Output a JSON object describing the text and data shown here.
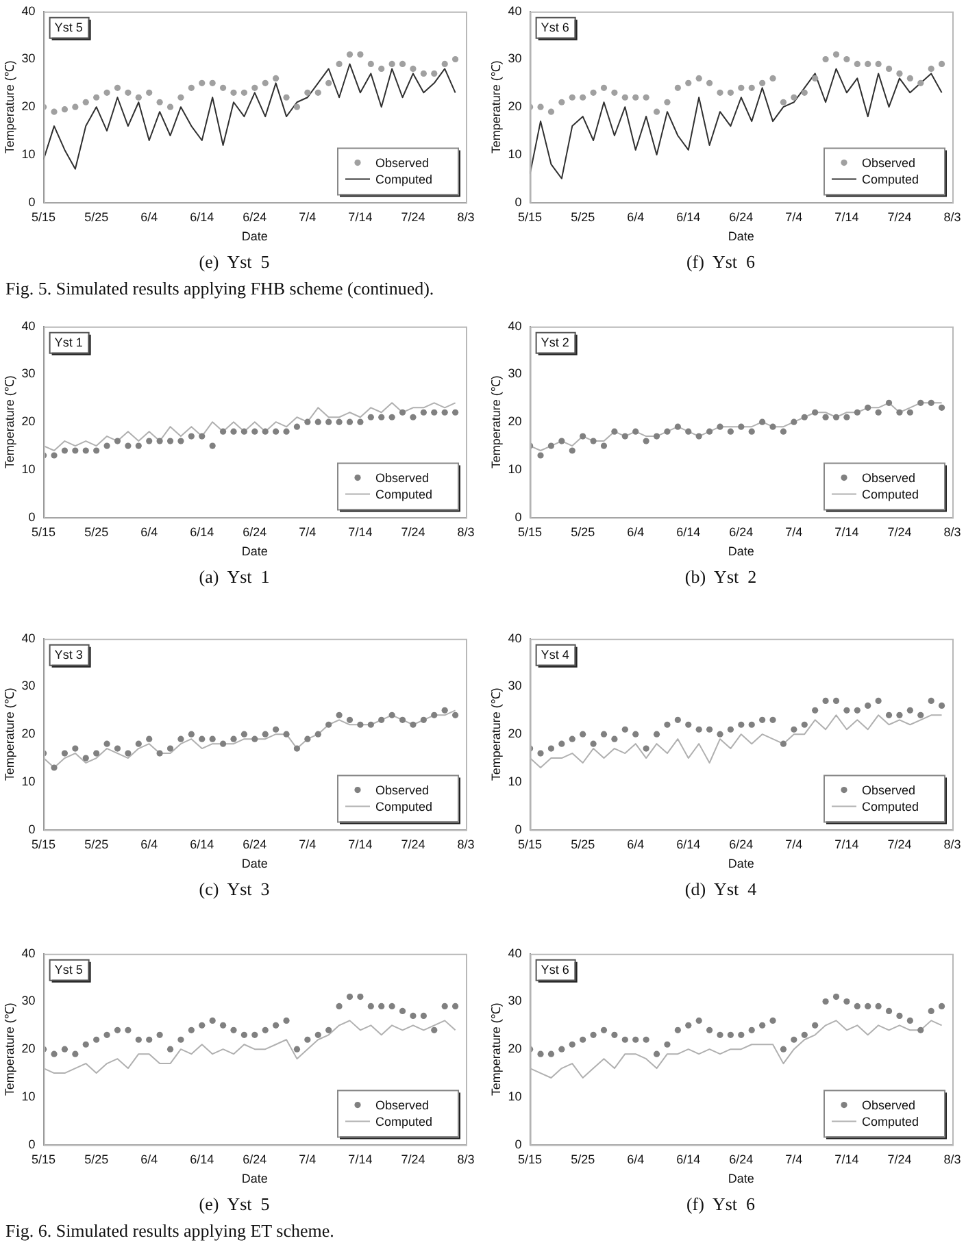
{
  "chart_data": [
    {
      "type": "line",
      "title": "(e)  Yst  5",
      "xlabel": "Date",
      "ylabel": "Temperature (℃)",
      "annotations": [
        "Yst 5",
        "Fig. 5. Simulated results applying FHB scheme (continued)."
      ],
      "legend": "bottom right",
      "ylim": [
        0,
        40
      ],
      "yticks": [
        0,
        10,
        20,
        30,
        40
      ],
      "xlim": [
        "--05-15",
        "--08-03"
      ],
      "xticks": [
        {
          "value": "--05-15",
          "label": "5/15"
        },
        {
          "value": "--05-25",
          "label": "5/25"
        },
        {
          "value": "--06-04",
          "label": "6/4"
        },
        {
          "value": "--06-14",
          "label": "6/14"
        },
        {
          "value": "--06-24",
          "label": "6/24"
        },
        {
          "value": "--07-04",
          "label": "7/4"
        },
        {
          "value": "--07-14",
          "label": "7/14"
        },
        {
          "value": "--07-24",
          "label": "7/24"
        },
        {
          "value": "--08-03",
          "label": "8/3"
        }
      ],
      "x": [
        "--05-15",
        "--05-17",
        "--05-19",
        "--05-21",
        "--05-23",
        "--05-25",
        "--05-27",
        "--05-29",
        "--05-31",
        "--06-02",
        "--06-04",
        "--06-06",
        "--06-08",
        "--06-10",
        "--06-12",
        "--06-14",
        "--06-16",
        "--06-18",
        "--06-20",
        "--06-22",
        "--06-24",
        "--06-26",
        "--06-28",
        "--06-30",
        "--07-02",
        "--07-04",
        "--07-06",
        "--07-08",
        "--07-10",
        "--07-12",
        "--07-14",
        "--07-16",
        "--07-18",
        "--07-20",
        "--07-22",
        "--07-24",
        "--07-26",
        "--07-28",
        "--07-30",
        "--08-01"
      ],
      "series": [
        {
          "name": "Observed",
          "type": "scatter",
          "marker": "circle",
          "color": "#a0a0a0",
          "values": [
            20,
            19,
            19.5,
            20,
            21,
            22,
            23,
            24,
            23,
            22,
            23,
            21,
            20,
            22,
            24,
            25,
            25,
            24,
            23,
            23,
            24,
            25,
            26,
            22,
            20,
            23,
            23,
            25,
            29,
            31,
            31,
            29,
            28,
            29,
            29,
            28,
            27,
            27,
            29,
            30
          ]
        },
        {
          "name": "Computed",
          "type": "line",
          "marker": "none",
          "color": "#303030",
          "values": [
            9,
            16,
            11,
            7,
            16,
            20,
            15,
            22,
            16,
            21,
            13,
            19,
            14,
            20,
            16,
            13,
            22,
            12,
            21,
            18,
            23,
            18,
            25,
            18,
            21,
            22,
            25,
            28,
            22,
            29,
            23,
            27,
            20,
            28,
            22,
            27,
            23,
            25,
            28,
            23
          ]
        }
      ]
    },
    {
      "type": "line",
      "title": "(f)  Yst  6",
      "xlabel": "Date",
      "ylabel": "Temperature (℃)",
      "annotations": [
        "Yst 6"
      ],
      "legend": "bottom right",
      "ylim": [
        0,
        40
      ],
      "yticks": [
        0,
        10,
        20,
        30,
        40
      ],
      "xlim": [
        "--05-15",
        "--08-03"
      ],
      "xticks": [
        {
          "value": "--05-15",
          "label": "5/15"
        },
        {
          "value": "--05-25",
          "label": "5/25"
        },
        {
          "value": "--06-04",
          "label": "6/4"
        },
        {
          "value": "--06-14",
          "label": "6/14"
        },
        {
          "value": "--06-24",
          "label": "6/24"
        },
        {
          "value": "--07-04",
          "label": "7/4"
        },
        {
          "value": "--07-14",
          "label": "7/14"
        },
        {
          "value": "--07-24",
          "label": "7/24"
        },
        {
          "value": "--08-03",
          "label": "8/3"
        }
      ],
      "x": [
        "--05-15",
        "--05-17",
        "--05-19",
        "--05-21",
        "--05-23",
        "--05-25",
        "--05-27",
        "--05-29",
        "--05-31",
        "--06-02",
        "--06-04",
        "--06-06",
        "--06-08",
        "--06-10",
        "--06-12",
        "--06-14",
        "--06-16",
        "--06-18",
        "--06-20",
        "--06-22",
        "--06-24",
        "--06-26",
        "--06-28",
        "--06-30",
        "--07-02",
        "--07-04",
        "--07-06",
        "--07-08",
        "--07-10",
        "--07-12",
        "--07-14",
        "--07-16",
        "--07-18",
        "--07-20",
        "--07-22",
        "--07-24",
        "--07-26",
        "--07-28",
        "--07-30",
        "--08-01"
      ],
      "series": [
        {
          "name": "Observed",
          "type": "scatter",
          "marker": "circle",
          "color": "#a0a0a0",
          "values": [
            20,
            20,
            19,
            21,
            22,
            22,
            23,
            24,
            23,
            22,
            22,
            22,
            19,
            21,
            24,
            25,
            26,
            25,
            23,
            23,
            24,
            24,
            25,
            26,
            21,
            22,
            23,
            26,
            30,
            31,
            30,
            29,
            29,
            29,
            28,
            27,
            26,
            25,
            28,
            29
          ]
        },
        {
          "name": "Computed",
          "type": "line",
          "marker": "none",
          "color": "#303030",
          "values": [
            6,
            17,
            8,
            5,
            16,
            18,
            13,
            21,
            14,
            20,
            11,
            18,
            10,
            19,
            14,
            11,
            22,
            12,
            19,
            16,
            22,
            17,
            24,
            17,
            20,
            21,
            24,
            27,
            21,
            28,
            23,
            26,
            18,
            27,
            20,
            26,
            23,
            25,
            27,
            23
          ]
        }
      ]
    },
    {
      "type": "line",
      "title": "(a)  Yst  1",
      "xlabel": "Date",
      "ylabel": "Temperature (℃)",
      "annotations": [
        "Yst 1"
      ],
      "legend": "bottom right",
      "ylim": [
        0,
        40
      ],
      "yticks": [
        0,
        10,
        20,
        30,
        40
      ],
      "xlim": [
        "--05-15",
        "--08-03"
      ],
      "xticks": [
        {
          "value": "--05-15",
          "label": "5/15"
        },
        {
          "value": "--05-25",
          "label": "5/25"
        },
        {
          "value": "--06-04",
          "label": "6/4"
        },
        {
          "value": "--06-14",
          "label": "6/14"
        },
        {
          "value": "--06-24",
          "label": "6/24"
        },
        {
          "value": "--07-04",
          "label": "7/4"
        },
        {
          "value": "--07-14",
          "label": "7/14"
        },
        {
          "value": "--07-24",
          "label": "7/24"
        },
        {
          "value": "--08-03",
          "label": "8/3"
        }
      ],
      "x": [
        "--05-15",
        "--05-17",
        "--05-19",
        "--05-21",
        "--05-23",
        "--05-25",
        "--05-27",
        "--05-29",
        "--05-31",
        "--06-02",
        "--06-04",
        "--06-06",
        "--06-08",
        "--06-10",
        "--06-12",
        "--06-14",
        "--06-16",
        "--06-18",
        "--06-20",
        "--06-22",
        "--06-24",
        "--06-26",
        "--06-28",
        "--06-30",
        "--07-02",
        "--07-04",
        "--07-06",
        "--07-08",
        "--07-10",
        "--07-12",
        "--07-14",
        "--07-16",
        "--07-18",
        "--07-20",
        "--07-22",
        "--07-24",
        "--07-26",
        "--07-28",
        "--07-30",
        "--08-01"
      ],
      "series": [
        {
          "name": "Observed",
          "type": "scatter",
          "marker": "circle",
          "color": "#808080",
          "values": [
            13,
            13,
            14,
            14,
            14,
            14,
            15,
            16,
            15,
            15,
            16,
            16,
            16,
            16,
            17,
            17,
            15,
            18,
            18,
            18,
            18,
            18,
            18,
            18,
            19,
            20,
            20,
            20,
            20,
            20,
            20,
            21,
            21,
            21,
            22,
            21,
            22,
            22,
            22,
            22
          ]
        },
        {
          "name": "Computed",
          "type": "line",
          "marker": "none",
          "color": "#b0b0b0",
          "values": [
            15,
            14,
            16,
            15,
            16,
            15,
            17,
            16,
            18,
            16,
            18,
            16,
            19,
            17,
            19,
            17,
            20,
            18,
            20,
            18,
            20,
            18,
            20,
            19,
            21,
            20,
            23,
            21,
            21,
            22,
            21,
            23,
            22,
            24,
            22,
            23,
            23,
            24,
            23,
            24
          ]
        }
      ]
    },
    {
      "type": "line",
      "title": "(b)  Yst  2",
      "xlabel": "Date",
      "ylabel": "Temperature (℃)",
      "annotations": [
        "Yst 2"
      ],
      "legend": "bottom right",
      "ylim": [
        0,
        40
      ],
      "yticks": [
        0,
        10,
        20,
        30,
        40
      ],
      "xlim": [
        "--05-15",
        "--08-03"
      ],
      "xticks": [
        {
          "value": "--05-15",
          "label": "5/15"
        },
        {
          "value": "--05-25",
          "label": "5/25"
        },
        {
          "value": "--06-04",
          "label": "6/4"
        },
        {
          "value": "--06-14",
          "label": "6/14"
        },
        {
          "value": "--06-24",
          "label": "6/24"
        },
        {
          "value": "--07-04",
          "label": "7/4"
        },
        {
          "value": "--07-14",
          "label": "7/14"
        },
        {
          "value": "--07-24",
          "label": "7/24"
        },
        {
          "value": "--08-03",
          "label": "8/3"
        }
      ],
      "x": [
        "--05-15",
        "--05-17",
        "--05-19",
        "--05-21",
        "--05-23",
        "--05-25",
        "--05-27",
        "--05-29",
        "--05-31",
        "--06-02",
        "--06-04",
        "--06-06",
        "--06-08",
        "--06-10",
        "--06-12",
        "--06-14",
        "--06-16",
        "--06-18",
        "--06-20",
        "--06-22",
        "--06-24",
        "--06-26",
        "--06-28",
        "--06-30",
        "--07-02",
        "--07-04",
        "--07-06",
        "--07-08",
        "--07-10",
        "--07-12",
        "--07-14",
        "--07-16",
        "--07-18",
        "--07-20",
        "--07-22",
        "--07-24",
        "--07-26",
        "--07-28",
        "--07-30",
        "--08-01"
      ],
      "series": [
        {
          "name": "Observed",
          "type": "scatter",
          "marker": "circle",
          "color": "#808080",
          "values": [
            15,
            13,
            15,
            16,
            14,
            17,
            16,
            15,
            18,
            17,
            18,
            16,
            17,
            18,
            19,
            18,
            17,
            18,
            19,
            18,
            19,
            18,
            20,
            19,
            18,
            20,
            21,
            22,
            21,
            21,
            21,
            22,
            23,
            22,
            24,
            22,
            22,
            24,
            24,
            23
          ]
        },
        {
          "name": "Computed",
          "type": "line",
          "marker": "none",
          "color": "#b0b0b0",
          "values": [
            15,
            14,
            15,
            16,
            15,
            17,
            16,
            16,
            18,
            17,
            18,
            17,
            17,
            18,
            19,
            18,
            17,
            18,
            19,
            19,
            19,
            19,
            20,
            19,
            19,
            20,
            21,
            22,
            22,
            21,
            22,
            22,
            23,
            23,
            24,
            22,
            23,
            24,
            24,
            24
          ]
        }
      ]
    },
    {
      "type": "line",
      "title": "(c)  Yst  3",
      "xlabel": "Date",
      "ylabel": "Temperature (℃)",
      "annotations": [
        "Yst 3"
      ],
      "legend": "bottom right",
      "ylim": [
        0,
        40
      ],
      "yticks": [
        0,
        10,
        20,
        30,
        40
      ],
      "xlim": [
        "--05-15",
        "--08-03"
      ],
      "xticks": [
        {
          "value": "--05-15",
          "label": "5/15"
        },
        {
          "value": "--05-25",
          "label": "5/25"
        },
        {
          "value": "--06-04",
          "label": "6/4"
        },
        {
          "value": "--06-14",
          "label": "6/14"
        },
        {
          "value": "--06-24",
          "label": "6/24"
        },
        {
          "value": "--07-04",
          "label": "7/4"
        },
        {
          "value": "--07-14",
          "label": "7/14"
        },
        {
          "value": "--07-24",
          "label": "7/24"
        },
        {
          "value": "--08-03",
          "label": "8/3"
        }
      ],
      "x": [
        "--05-15",
        "--05-17",
        "--05-19",
        "--05-21",
        "--05-23",
        "--05-25",
        "--05-27",
        "--05-29",
        "--05-31",
        "--06-02",
        "--06-04",
        "--06-06",
        "--06-08",
        "--06-10",
        "--06-12",
        "--06-14",
        "--06-16",
        "--06-18",
        "--06-20",
        "--06-22",
        "--06-24",
        "--06-26",
        "--06-28",
        "--06-30",
        "--07-02",
        "--07-04",
        "--07-06",
        "--07-08",
        "--07-10",
        "--07-12",
        "--07-14",
        "--07-16",
        "--07-18",
        "--07-20",
        "--07-22",
        "--07-24",
        "--07-26",
        "--07-28",
        "--07-30",
        "--08-01"
      ],
      "series": [
        {
          "name": "Observed",
          "type": "scatter",
          "marker": "circle",
          "color": "#808080",
          "values": [
            16,
            13,
            16,
            17,
            15,
            16,
            18,
            17,
            16,
            18,
            19,
            16,
            17,
            19,
            20,
            19,
            19,
            18,
            19,
            20,
            19,
            20,
            21,
            20,
            17,
            19,
            20,
            22,
            24,
            23,
            22,
            22,
            23,
            24,
            23,
            22,
            23,
            24,
            25,
            24
          ]
        },
        {
          "name": "Computed",
          "type": "line",
          "marker": "none",
          "color": "#b0b0b0",
          "values": [
            15,
            13,
            15,
            16,
            14,
            15,
            17,
            16,
            15,
            17,
            18,
            16,
            16,
            18,
            19,
            17,
            18,
            18,
            18,
            19,
            19,
            19,
            20,
            20,
            17,
            19,
            20,
            22,
            23,
            22,
            22,
            22,
            23,
            24,
            23,
            22,
            23,
            24,
            24,
            25
          ]
        }
      ]
    },
    {
      "type": "line",
      "title": "(d)  Yst  4",
      "xlabel": "Date",
      "ylabel": "Temperature (℃)",
      "annotations": [
        "Yst 4"
      ],
      "legend": "bottom right",
      "ylim": [
        0,
        40
      ],
      "yticks": [
        0,
        10,
        20,
        30,
        40
      ],
      "xlim": [
        "--05-15",
        "--08-03"
      ],
      "xticks": [
        {
          "value": "--05-15",
          "label": "5/15"
        },
        {
          "value": "--05-25",
          "label": "5/25"
        },
        {
          "value": "--06-04",
          "label": "6/4"
        },
        {
          "value": "--06-14",
          "label": "6/14"
        },
        {
          "value": "--06-24",
          "label": "6/24"
        },
        {
          "value": "--07-04",
          "label": "7/4"
        },
        {
          "value": "--07-14",
          "label": "7/14"
        },
        {
          "value": "--07-24",
          "label": "7/24"
        },
        {
          "value": "--08-03",
          "label": "8/3"
        }
      ],
      "x": [
        "--05-15",
        "--05-17",
        "--05-19",
        "--05-21",
        "--05-23",
        "--05-25",
        "--05-27",
        "--05-29",
        "--05-31",
        "--06-02",
        "--06-04",
        "--06-06",
        "--06-08",
        "--06-10",
        "--06-12",
        "--06-14",
        "--06-16",
        "--06-18",
        "--06-20",
        "--06-22",
        "--06-24",
        "--06-26",
        "--06-28",
        "--06-30",
        "--07-02",
        "--07-04",
        "--07-06",
        "--07-08",
        "--07-10",
        "--07-12",
        "--07-14",
        "--07-16",
        "--07-18",
        "--07-20",
        "--07-22",
        "--07-24",
        "--07-26",
        "--07-28",
        "--07-30",
        "--08-01"
      ],
      "series": [
        {
          "name": "Observed",
          "type": "scatter",
          "marker": "circle",
          "color": "#808080",
          "values": [
            17,
            16,
            17,
            18,
            19,
            20,
            18,
            20,
            19,
            21,
            20,
            17,
            20,
            22,
            23,
            22,
            21,
            21,
            20,
            21,
            22,
            22,
            23,
            23,
            18,
            21,
            22,
            25,
            27,
            27,
            25,
            25,
            26,
            27,
            24,
            24,
            25,
            24,
            27,
            26
          ]
        },
        {
          "name": "Computed",
          "type": "line",
          "marker": "none",
          "color": "#b0b0b0",
          "values": [
            15,
            13,
            15,
            15,
            16,
            14,
            17,
            15,
            17,
            16,
            18,
            15,
            18,
            16,
            19,
            15,
            18,
            14,
            19,
            17,
            20,
            18,
            20,
            19,
            18,
            20,
            20,
            23,
            21,
            24,
            21,
            23,
            21,
            24,
            22,
            23,
            22,
            23,
            24,
            24
          ]
        }
      ]
    },
    {
      "type": "line",
      "title": "(e)  Yst  5",
      "xlabel": "Date",
      "ylabel": "Temperature (℃)",
      "annotations": [
        "Yst 5",
        "Fig. 6. Simulated results applying ET scheme."
      ],
      "legend": "bottom right",
      "ylim": [
        0,
        40
      ],
      "yticks": [
        0,
        10,
        20,
        30,
        40
      ],
      "xlim": [
        "--05-15",
        "--08-03"
      ],
      "xticks": [
        {
          "value": "--05-15",
          "label": "5/15"
        },
        {
          "value": "--05-25",
          "label": "5/25"
        },
        {
          "value": "--06-04",
          "label": "6/4"
        },
        {
          "value": "--06-14",
          "label": "6/14"
        },
        {
          "value": "--06-24",
          "label": "6/24"
        },
        {
          "value": "--07-04",
          "label": "7/4"
        },
        {
          "value": "--07-14",
          "label": "7/14"
        },
        {
          "value": "--07-24",
          "label": "7/24"
        },
        {
          "value": "--08-03",
          "label": "8/3"
        }
      ],
      "x": [
        "--05-15",
        "--05-17",
        "--05-19",
        "--05-21",
        "--05-23",
        "--05-25",
        "--05-27",
        "--05-29",
        "--05-31",
        "--06-02",
        "--06-04",
        "--06-06",
        "--06-08",
        "--06-10",
        "--06-12",
        "--06-14",
        "--06-16",
        "--06-18",
        "--06-20",
        "--06-22",
        "--06-24",
        "--06-26",
        "--06-28",
        "--06-30",
        "--07-02",
        "--07-04",
        "--07-06",
        "--07-08",
        "--07-10",
        "--07-12",
        "--07-14",
        "--07-16",
        "--07-18",
        "--07-20",
        "--07-22",
        "--07-24",
        "--07-26",
        "--07-28",
        "--07-30",
        "--08-01"
      ],
      "series": [
        {
          "name": "Observed",
          "type": "scatter",
          "marker": "circle",
          "color": "#808080",
          "values": [
            20,
            19,
            20,
            19,
            21,
            22,
            23,
            24,
            24,
            22,
            22,
            23,
            20,
            22,
            24,
            25,
            26,
            25,
            24,
            23,
            23,
            24,
            25,
            26,
            20,
            22,
            23,
            24,
            29,
            31,
            31,
            29,
            29,
            29,
            28,
            27,
            27,
            24,
            29,
            29
          ]
        },
        {
          "name": "Computed",
          "type": "line",
          "marker": "none",
          "color": "#b0b0b0",
          "values": [
            16,
            15,
            15,
            16,
            17,
            15,
            17,
            18,
            16,
            19,
            19,
            17,
            17,
            20,
            19,
            21,
            19,
            20,
            19,
            21,
            20,
            20,
            21,
            22,
            18,
            20,
            22,
            23,
            25,
            26,
            24,
            25,
            23,
            25,
            24,
            25,
            24,
            25,
            26,
            24
          ]
        }
      ]
    },
    {
      "type": "line",
      "title": "(f)  Yst  6",
      "xlabel": "Date",
      "ylabel": "Temperature (℃)",
      "annotations": [
        "Yst 6"
      ],
      "legend": "bottom right",
      "ylim": [
        0,
        40
      ],
      "yticks": [
        0,
        10,
        20,
        30,
        40
      ],
      "xlim": [
        "--05-15",
        "--08-03"
      ],
      "xticks": [
        {
          "value": "--05-15",
          "label": "5/15"
        },
        {
          "value": "--05-25",
          "label": "5/25"
        },
        {
          "value": "--06-04",
          "label": "6/4"
        },
        {
          "value": "--06-14",
          "label": "6/14"
        },
        {
          "value": "--06-24",
          "label": "6/24"
        },
        {
          "value": "--07-04",
          "label": "7/4"
        },
        {
          "value": "--07-14",
          "label": "7/14"
        },
        {
          "value": "--07-24",
          "label": "7/24"
        },
        {
          "value": "--08-03",
          "label": "8/3"
        }
      ],
      "x": [
        "--05-15",
        "--05-17",
        "--05-19",
        "--05-21",
        "--05-23",
        "--05-25",
        "--05-27",
        "--05-29",
        "--05-31",
        "--06-02",
        "--06-04",
        "--06-06",
        "--06-08",
        "--06-10",
        "--06-12",
        "--06-14",
        "--06-16",
        "--06-18",
        "--06-20",
        "--06-22",
        "--06-24",
        "--06-26",
        "--06-28",
        "--06-30",
        "--07-02",
        "--07-04",
        "--07-06",
        "--07-08",
        "--07-10",
        "--07-12",
        "--07-14",
        "--07-16",
        "--07-18",
        "--07-20",
        "--07-22",
        "--07-24",
        "--07-26",
        "--07-28",
        "--07-30",
        "--08-01"
      ],
      "series": [
        {
          "name": "Observed",
          "type": "scatter",
          "marker": "circle",
          "color": "#808080",
          "values": [
            20,
            19,
            19,
            20,
            21,
            22,
            23,
            24,
            23,
            22,
            22,
            22,
            19,
            21,
            24,
            25,
            26,
            24,
            23,
            23,
            23,
            24,
            25,
            26,
            20,
            22,
            23,
            25,
            30,
            31,
            30,
            29,
            29,
            29,
            28,
            27,
            26,
            24,
            28,
            29
          ]
        },
        {
          "name": "Computed",
          "type": "line",
          "marker": "none",
          "color": "#b0b0b0",
          "values": [
            16,
            15,
            14,
            16,
            17,
            14,
            16,
            18,
            16,
            19,
            19,
            18,
            16,
            19,
            19,
            20,
            19,
            20,
            19,
            20,
            20,
            21,
            21,
            21,
            17,
            20,
            22,
            23,
            25,
            26,
            24,
            25,
            23,
            25,
            24,
            25,
            24,
            24,
            26,
            25
          ]
        }
      ]
    }
  ]
}
